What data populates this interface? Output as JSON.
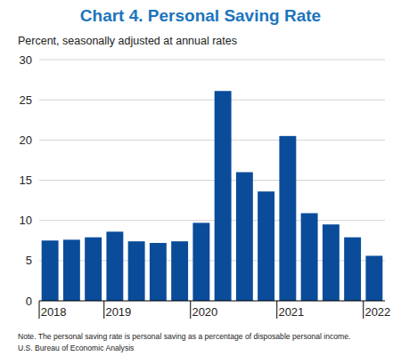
{
  "chart_data": {
    "type": "bar",
    "title": "Chart 4. Personal Saving Rate",
    "subtitle": "Percent, seasonally adjusted at annual rates",
    "note": "Note. The personal saving rate is personal saving as a percentage of disposable personal income.",
    "source": "U.S. Bureau of Economic Analysis",
    "categories": [
      "2018",
      null,
      null,
      "2019",
      null,
      null,
      null,
      "2020",
      null,
      null,
      null,
      "2021",
      null,
      null,
      null,
      "2022"
    ],
    "values": [
      7.5,
      7.6,
      7.9,
      8.6,
      7.4,
      7.2,
      7.4,
      9.7,
      26.1,
      16.0,
      13.6,
      20.5,
      10.9,
      9.5,
      7.9,
      5.6
    ],
    "color": "#0a4c9a",
    "ylim": [
      0,
      30
    ],
    "yticks": [
      0,
      5,
      10,
      15,
      20,
      25,
      30
    ],
    "grid": true
  }
}
